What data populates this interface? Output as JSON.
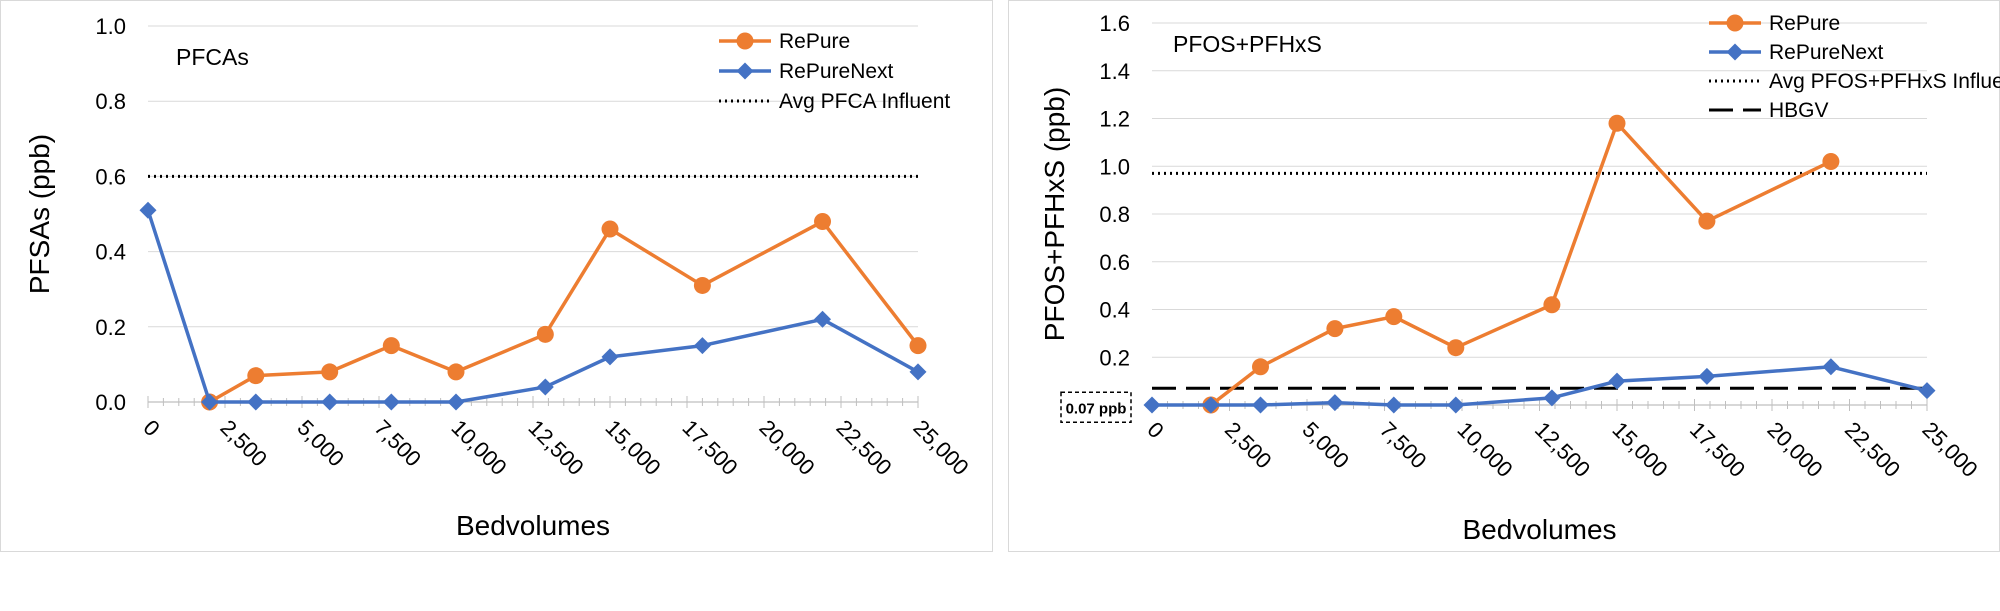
{
  "chart_data": [
    {
      "type": "line",
      "title": "PFCAs",
      "xlabel": "Bedvolumes",
      "ylabel": "PFSAs (ppb)",
      "xlim": [
        0,
        25000
      ],
      "ylim": [
        0,
        1.0
      ],
      "y_ticks": [
        "0.0",
        "0.2",
        "0.4",
        "0.6",
        "0.8",
        "1.0"
      ],
      "x_ticks": [
        "0",
        "2,500",
        "5,000",
        "7,500",
        "10,000",
        "12,500",
        "15,000",
        "17,500",
        "20,000",
        "22,500",
        "25,000"
      ],
      "series": [
        {
          "name": "RePure",
          "color": "#ed7d31",
          "marker": "circle",
          "x": [
            2000,
            3500,
            5900,
            7900,
            10000,
            12900,
            15000,
            18000,
            21900,
            25000
          ],
          "y": [
            0.0,
            0.07,
            0.08,
            0.15,
            0.08,
            0.18,
            0.46,
            0.31,
            0.48,
            0.15
          ]
        },
        {
          "name": "RePureNext",
          "color": "#4472c4",
          "marker": "diamond",
          "x": [
            0,
            2000,
            3500,
            5900,
            7900,
            10000,
            12900,
            15000,
            18000,
            21900,
            25000
          ],
          "y": [
            0.51,
            0.0,
            0.0,
            0.0,
            0.0,
            0.0,
            0.04,
            0.12,
            0.15,
            0.22,
            0.08
          ]
        }
      ],
      "reference_lines": [
        {
          "name": "Avg PFCA Influent",
          "y": 0.6,
          "style": "dotted"
        }
      ]
    },
    {
      "type": "line",
      "title": "PFOS+PFHxS",
      "xlabel": "Bedvolumes",
      "ylabel": "PFOS+PFHxS (ppb)",
      "xlim": [
        0,
        25000
      ],
      "ylim": [
        0,
        1.6
      ],
      "y_ticks": [
        "0.2",
        "0.4",
        "0.6",
        "0.8",
        "1.0",
        "1.2",
        "1.4",
        "1.6"
      ],
      "x_ticks": [
        "0",
        "2,500",
        "5,000",
        "7,500",
        "10,000",
        "12,500",
        "15,000",
        "17,500",
        "20,000",
        "22,500",
        "25,000"
      ],
      "series": [
        {
          "name": "RePure",
          "color": "#ed7d31",
          "marker": "circle",
          "x": [
            1900,
            3500,
            5900,
            7800,
            9800,
            12900,
            15000,
            17900,
            21900
          ],
          "y": [
            0.0,
            0.16,
            0.32,
            0.37,
            0.24,
            0.42,
            1.18,
            0.77,
            1.02
          ]
        },
        {
          "name": "RePureNext",
          "color": "#4472c4",
          "marker": "diamond",
          "x": [
            0,
            1900,
            3500,
            5900,
            7800,
            9800,
            12900,
            15000,
            17900,
            21900,
            25000
          ],
          "y": [
            0.0,
            0.0,
            0.0,
            0.01,
            0.0,
            0.0,
            0.03,
            0.1,
            0.12,
            0.16,
            0.06
          ]
        }
      ],
      "reference_lines": [
        {
          "name": "Avg PFOS+PFHxS Influent",
          "y": 0.97,
          "style": "dotted"
        },
        {
          "name": "HBGV",
          "y": 0.07,
          "style": "dashed"
        }
      ],
      "annotation": "0.07 ppb"
    }
  ]
}
